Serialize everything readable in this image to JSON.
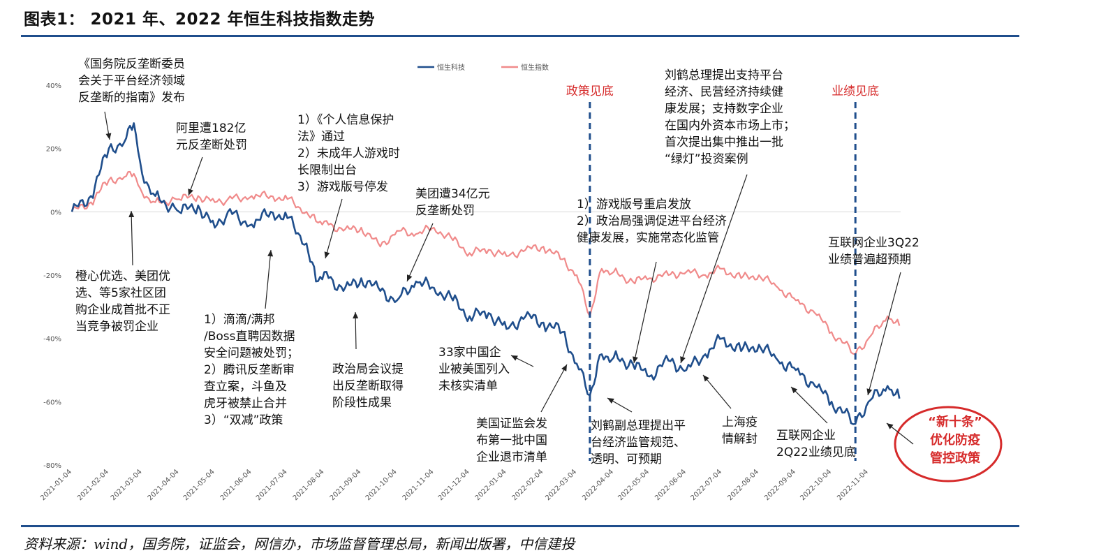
{
  "title": "图表1： 2021 年、2022 年恒生科技指数走势",
  "source": "资料来源：wind，国务院，证监会，网信办，市场监督管理总局，新闻出版署，中信建投",
  "colors": {
    "hstech": "#1f4e8c",
    "hsi": "#f08a8a",
    "accent_red": "#d62b2b",
    "rule": "#1f4e8c"
  },
  "chart_data": {
    "type": "line",
    "title": "",
    "xlabel": "",
    "ylabel": "",
    "ylim": [
      -0.8,
      0.4
    ],
    "yticks": [
      0.4,
      0.2,
      0,
      -0.2,
      -0.4,
      -0.6,
      -0.8
    ],
    "ytick_labels": [
      "40%",
      "20%",
      "0%",
      "-20%",
      "-40%",
      "-60%",
      "-80%"
    ],
    "x_tick_labels": [
      "2021-01-04",
      "2021-02-04",
      "2021-03-04",
      "2021-04-04",
      "2021-05-04",
      "2021-06-04",
      "2021-07-04",
      "2021-08-04",
      "2021-09-04",
      "2021-10-04",
      "2021-11-04",
      "2021-12-04",
      "2022-01-04",
      "2022-02-04",
      "2022-03-04",
      "2022-04-04",
      "2022-05-04",
      "2022-06-04",
      "2022-07-04",
      "2022-08-04",
      "2022-09-04",
      "2022-10-04",
      "2022-11-04"
    ],
    "legend_position": "top-center",
    "series": [
      {
        "name": "恒生科技",
        "x": [
          "2021-01-04",
          "2021-01-20",
          "2021-02-04",
          "2021-02-17",
          "2021-02-25",
          "2021-03-04",
          "2021-03-15",
          "2021-04-04",
          "2021-04-20",
          "2021-05-04",
          "2021-05-15",
          "2021-06-04",
          "2021-06-20",
          "2021-07-04",
          "2021-07-20",
          "2021-07-28",
          "2021-08-04",
          "2021-08-20",
          "2021-09-04",
          "2021-09-20",
          "2021-10-04",
          "2021-10-20",
          "2021-11-04",
          "2021-11-20",
          "2021-12-04",
          "2021-12-20",
          "2022-01-04",
          "2022-01-20",
          "2022-02-04",
          "2022-02-20",
          "2022-03-04",
          "2022-03-15",
          "2022-03-25",
          "2022-04-04",
          "2022-04-20",
          "2022-05-04",
          "2022-05-20",
          "2022-06-04",
          "2022-06-20",
          "2022-07-04",
          "2022-07-20",
          "2022-08-04",
          "2022-08-20",
          "2022-09-04",
          "2022-09-20",
          "2022-10-04",
          "2022-10-24",
          "2022-11-04",
          "2022-11-20",
          "2022-11-30"
        ],
        "values": [
          0,
          0.05,
          0.2,
          0.22,
          0.28,
          0.12,
          0.05,
          0.0,
          0.02,
          -0.05,
          0.0,
          -0.04,
          0.0,
          -0.02,
          -0.1,
          -0.22,
          -0.19,
          -0.25,
          -0.21,
          -0.25,
          -0.28,
          -0.22,
          -0.24,
          -0.28,
          -0.33,
          -0.32,
          -0.37,
          -0.33,
          -0.35,
          -0.38,
          -0.48,
          -0.58,
          -0.45,
          -0.46,
          -0.48,
          -0.52,
          -0.47,
          -0.5,
          -0.45,
          -0.4,
          -0.44,
          -0.42,
          -0.47,
          -0.5,
          -0.55,
          -0.6,
          -0.67,
          -0.6,
          -0.55,
          -0.59
        ]
      },
      {
        "name": "恒生指数",
        "x": [
          "2021-01-04",
          "2021-01-20",
          "2021-02-04",
          "2021-02-17",
          "2021-02-25",
          "2021-03-04",
          "2021-03-15",
          "2021-04-04",
          "2021-04-20",
          "2021-05-04",
          "2021-05-15",
          "2021-06-04",
          "2021-06-20",
          "2021-07-04",
          "2021-07-20",
          "2021-07-28",
          "2021-08-04",
          "2021-08-20",
          "2021-09-04",
          "2021-09-20",
          "2021-10-04",
          "2021-10-20",
          "2021-11-04",
          "2021-11-20",
          "2021-12-04",
          "2021-12-20",
          "2022-01-04",
          "2022-01-20",
          "2022-02-04",
          "2022-02-20",
          "2022-03-04",
          "2022-03-15",
          "2022-03-25",
          "2022-04-04",
          "2022-04-20",
          "2022-05-04",
          "2022-05-20",
          "2022-06-04",
          "2022-06-20",
          "2022-07-04",
          "2022-07-20",
          "2022-08-04",
          "2022-08-20",
          "2022-09-04",
          "2022-09-20",
          "2022-10-04",
          "2022-10-24",
          "2022-11-04",
          "2022-11-20",
          "2022-11-30"
        ],
        "values": [
          0,
          0.03,
          0.1,
          0.11,
          0.12,
          0.06,
          0.03,
          0.04,
          0.05,
          0.03,
          0.04,
          0.05,
          0.05,
          0.04,
          0.0,
          -0.03,
          -0.03,
          -0.06,
          -0.05,
          -0.11,
          -0.06,
          -0.07,
          -0.05,
          -0.09,
          -0.13,
          -0.12,
          -0.14,
          -0.12,
          -0.11,
          -0.15,
          -0.2,
          -0.33,
          -0.18,
          -0.19,
          -0.22,
          -0.21,
          -0.2,
          -0.19,
          -0.2,
          -0.18,
          -0.21,
          -0.2,
          -0.24,
          -0.28,
          -0.32,
          -0.38,
          -0.45,
          -0.4,
          -0.33,
          -0.36
        ]
      }
    ],
    "vlines": [
      {
        "x": "2022-03-15",
        "label": "政策见底"
      },
      {
        "x": "2022-10-24",
        "label": "业绩见底"
      }
    ]
  },
  "annotations": {
    "a1": "《国务院反垄断委员\n会关于平台经济领域\n反垄断的指南》发布",
    "a2": "阿里遭182亿\n元反垄断处罚",
    "a3": "1）《个人信息保护\n法》通过\n2）未成年人游戏时\n长限制出台\n3）游戏版号停发",
    "a4": "美团遭34亿元\n反垄断处罚",
    "a5": "1）游戏版号重启发放\n2）政治局强调促进平台经济\n健康发展，实施常态化监管",
    "a6": "刘鹤总理提出支持平台\n经济、民营经济持续健\n康发展；支持数字企业\n在国内外资本市场上市；\n首次提出集中推出一批\n“绿灯”投资案例",
    "a7": "互联网企业3Q22\n业绩普遍超预期",
    "a8": "橙心优选、美团优\n选、等5家社区团\n购企业成首批不正\n当竞争被罚企业",
    "a9": "1）滴滴/满邦\n/Boss直聘因数据\n安全问题被处罚；\n2）腾讯反垄断审\n查立案，斗鱼及\n虎牙被禁止合并\n3）“双减”政策",
    "a10": "政治局会议提\n出反垄断取得\n阶段性成果",
    "a11": "33家中国企\n业被美国列入\n未核实清单",
    "a12": "美国证监会发\n布第一批中国\n企业退市清单",
    "a13": "刘鹤副总理提出平\n台经济监管规范、\n透明、可预期",
    "a14": "上海疫\n情解封",
    "a15": "互联网企业\n2Q22业绩见底",
    "circle": "“新十条”\n优化防疫\n管控政策"
  }
}
